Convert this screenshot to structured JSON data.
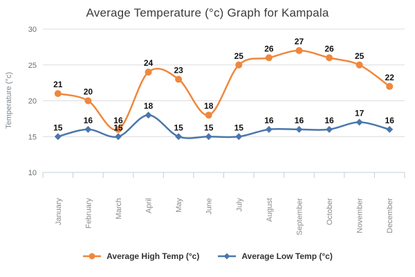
{
  "chart_data": {
    "type": "line",
    "line_style": "smooth",
    "title": "Average Temperature (°c) Graph for Kampala",
    "xlabel": "",
    "ylabel": "Temperature (°c)",
    "ylim": [
      10,
      30
    ],
    "yticks": [
      10,
      15,
      20,
      25,
      30
    ],
    "grid": "horizontal",
    "legend_position": "bottom",
    "data_labels": true,
    "categories": [
      "January",
      "February",
      "March",
      "April",
      "May",
      "June",
      "July",
      "August",
      "September",
      "October",
      "November",
      "December"
    ],
    "series": [
      {
        "name": "Average High Temp (°c)",
        "color": "#F0873C",
        "marker": "circle",
        "values": [
          21,
          20,
          16,
          24,
          23,
          18,
          25,
          26,
          27,
          26,
          25,
          22
        ]
      },
      {
        "name": "Average Low Temp (°c)",
        "color": "#4A76AC",
        "marker": "diamond",
        "values": [
          15,
          16,
          15,
          18,
          15,
          15,
          15,
          16,
          16,
          16,
          17,
          16
        ]
      }
    ]
  },
  "colors": {
    "background": "#FFFFFF",
    "grid": "#DCDCDC",
    "axis": "#C6CDD4",
    "title_text": "#3B3B3B",
    "data_label_text": "#111111",
    "y_tick_text": "#636D73",
    "axis_title_text": "#7B858B",
    "month_label_text": "#8A8A8A",
    "legend_text": "#333333",
    "high_series": "#F0873C",
    "low_series": "#4A76AC"
  }
}
